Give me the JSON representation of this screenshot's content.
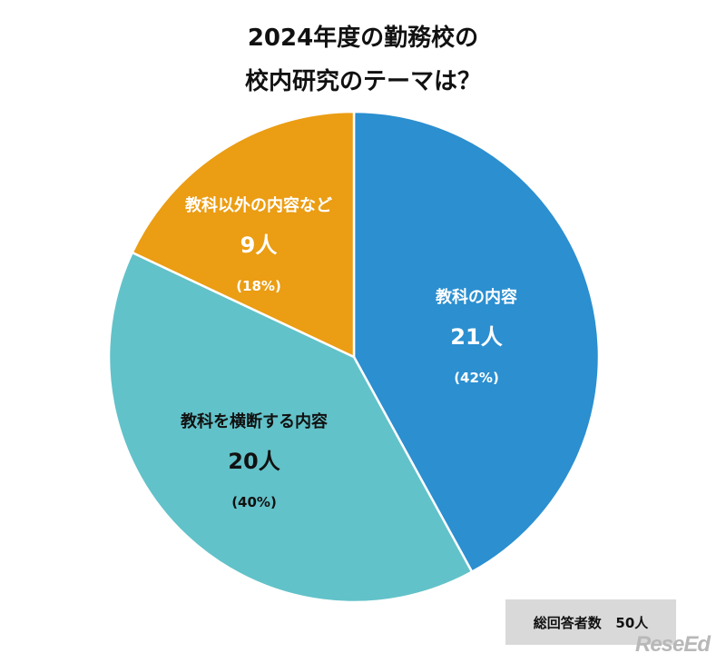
{
  "title": {
    "line1": "2024年度の勤務校の",
    "line2": "校内研究のテーマは？"
  },
  "total": {
    "label": "総回答者数",
    "value": "50人"
  },
  "logo": "ReseEd",
  "chart_data": {
    "type": "pie",
    "start_angle_deg": 0,
    "direction": "clockwise",
    "slices": [
      {
        "label": "教科の内容",
        "count_label": "21人",
        "pct_label": "(42%)",
        "value": 21,
        "percent": 42,
        "color": "#2b8fd0",
        "text_color": "#ffffff"
      },
      {
        "label": "教科を横断する内容",
        "count_label": "20人",
        "pct_label": "(40%)",
        "value": 20,
        "percent": 40,
        "color": "#62c2c9",
        "text_color": "#111111"
      },
      {
        "label": "教科以外の内容など",
        "count_label": "9人",
        "pct_label": "(18%)",
        "value": 9,
        "percent": 18,
        "color": "#eb9d13",
        "text_color": "#ffffff"
      }
    ]
  }
}
